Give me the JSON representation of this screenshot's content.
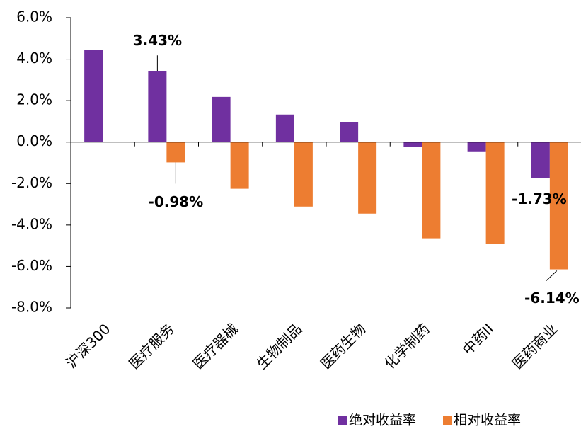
{
  "chart_data": {
    "type": "bar",
    "categories": [
      "沪深300",
      "医疗服务",
      "医疗器械",
      "生物制品",
      "医药生物",
      "化学制药",
      "中药II",
      "医药商业"
    ],
    "series": [
      {
        "name": "绝对收益率",
        "color": "#7030a0",
        "values": [
          4.44,
          3.43,
          2.18,
          1.33,
          0.96,
          -0.24,
          -0.48,
          -1.73
        ],
        "value_labels": [
          null,
          "3.43%",
          null,
          null,
          null,
          null,
          null,
          "-1.73%"
        ]
      },
      {
        "name": "相对收益率",
        "color": "#ed7d31",
        "values": [
          null,
          -0.98,
          -2.25,
          -3.11,
          -3.45,
          -4.64,
          -4.91,
          -6.14
        ],
        "value_labels": [
          null,
          "-0.98%",
          null,
          null,
          null,
          null,
          null,
          "-6.14%"
        ]
      }
    ],
    "ylim": [
      -8,
      6
    ],
    "yticks": [
      {
        "value": -8,
        "label": "-8.0%"
      },
      {
        "value": -6,
        "label": "-6.0%"
      },
      {
        "value": -4,
        "label": "-4.0%"
      },
      {
        "value": -2,
        "label": "-2.0%"
      },
      {
        "value": 0,
        "label": "0.0%"
      },
      {
        "value": 2,
        "label": "2.0%"
      },
      {
        "value": 4,
        "label": "4.0%"
      },
      {
        "value": 6,
        "label": "6.0%"
      }
    ],
    "legend": "bottom"
  }
}
